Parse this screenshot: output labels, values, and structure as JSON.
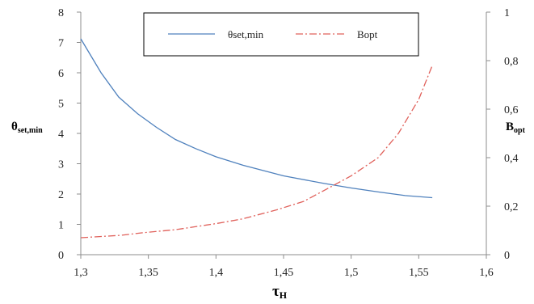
{
  "chart_data": {
    "type": "line",
    "title": "",
    "xlabel": {
      "main": "τ",
      "sub": "H"
    },
    "ylabel_left": {
      "main": "θ",
      "sub": "set,min"
    },
    "ylabel_right": {
      "main": "B",
      "sub": "opt"
    },
    "xlim": [
      1.3,
      1.6
    ],
    "ylim_left": [
      0,
      8
    ],
    "ylim_right": [
      0,
      1
    ],
    "x_ticks": [
      "1,3",
      "1,35",
      "1,4",
      "1,45",
      "1,5",
      "1,55",
      "1,6"
    ],
    "y_left_ticks": [
      "0",
      "1",
      "2",
      "3",
      "4",
      "5",
      "6",
      "7",
      "8"
    ],
    "y_right_ticks": [
      "0",
      "0,2",
      "0,4",
      "0,6",
      "0,8",
      "1"
    ],
    "grid": false,
    "legend_position": "top-center",
    "series": [
      {
        "name": "θset,min",
        "axis": "left",
        "color": "#4f81bd",
        "dash": "solid",
        "x": [
          1.3,
          1.315,
          1.328,
          1.342,
          1.356,
          1.37,
          1.385,
          1.4,
          1.42,
          1.45,
          1.48,
          1.5,
          1.52,
          1.54,
          1.56
        ],
        "y": [
          7.12,
          6.0,
          5.2,
          4.65,
          4.2,
          3.8,
          3.5,
          3.23,
          2.95,
          2.6,
          2.35,
          2.2,
          2.07,
          1.95,
          1.88
        ]
      },
      {
        "name": "Bopt",
        "axis": "right",
        "color": "#e0605a",
        "dash": "dashdot",
        "x": [
          1.3,
          1.315,
          1.33,
          1.345,
          1.37,
          1.4,
          1.42,
          1.445,
          1.465,
          1.485,
          1.5,
          1.52,
          1.535,
          1.55,
          1.56
        ],
        "y": [
          0.07,
          0.075,
          0.08,
          0.09,
          0.103,
          0.128,
          0.148,
          0.185,
          0.22,
          0.28,
          0.325,
          0.4,
          0.5,
          0.64,
          0.78
        ]
      }
    ]
  }
}
